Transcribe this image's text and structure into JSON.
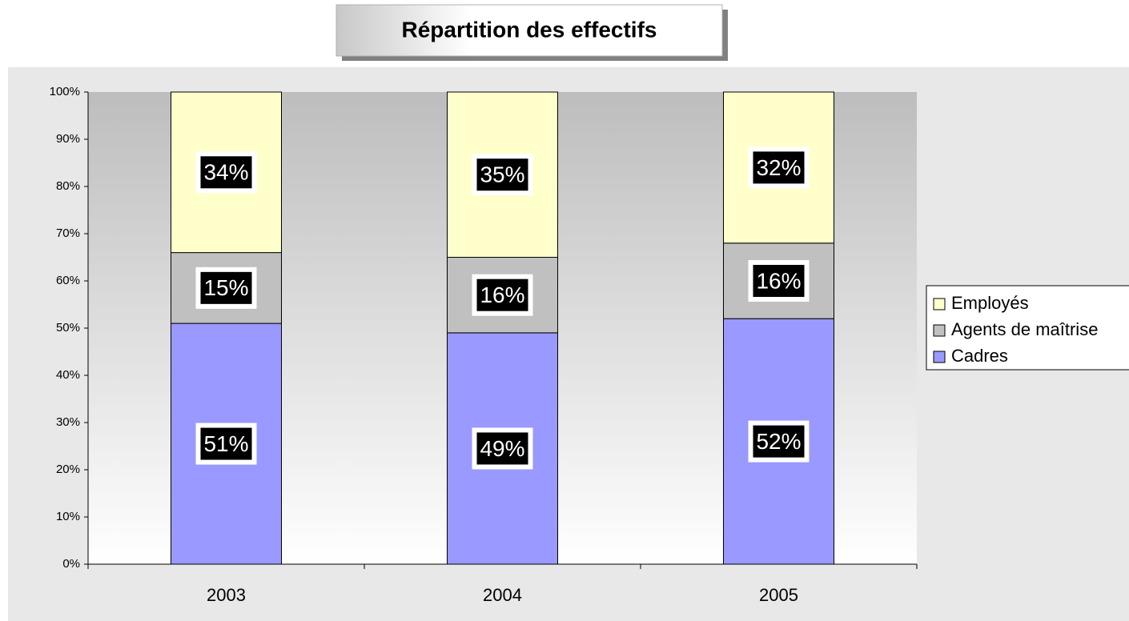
{
  "chart_data": {
    "type": "stacked_bar",
    "title": "Répartition des effectifs",
    "categories": [
      "2003",
      "2004",
      "2005"
    ],
    "series": [
      {
        "name": "Cadres",
        "color": "#9999ff",
        "values": [
          51,
          49,
          52
        ],
        "value_labels": [
          "51%",
          "49%",
          "52%"
        ]
      },
      {
        "name": "Agents de maîtrise",
        "color": "#c0c0c0",
        "values": [
          15,
          16,
          16
        ],
        "value_labels": [
          "15%",
          "16%",
          "16%"
        ]
      },
      {
        "name": "Employés",
        "color": "#ffffcc",
        "values": [
          34,
          35,
          32
        ],
        "value_labels": [
          "34%",
          "35%",
          "32%"
        ]
      }
    ],
    "ylim": [
      0,
      100
    ],
    "yticks": [
      {
        "value": 0,
        "label": "0%"
      },
      {
        "value": 10,
        "label": "10%"
      },
      {
        "value": 20,
        "label": "20%"
      },
      {
        "value": 30,
        "label": "30%"
      },
      {
        "value": 40,
        "label": "40%"
      },
      {
        "value": 50,
        "label": "50%"
      },
      {
        "value": 60,
        "label": "60%"
      },
      {
        "value": 70,
        "label": "70%"
      },
      {
        "value": 80,
        "label": "80%"
      },
      {
        "value": 90,
        "label": "90%"
      },
      {
        "value": 100,
        "label": "100%"
      }
    ],
    "legend": "right"
  }
}
